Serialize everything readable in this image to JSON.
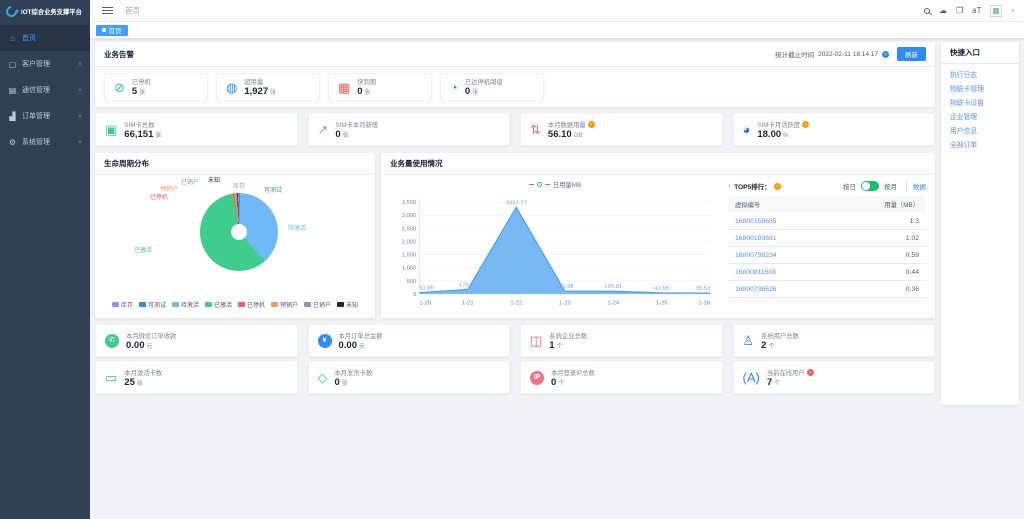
{
  "app": {
    "logo_title": "IOT综合业务支撑平台"
  },
  "sidebar": {
    "items": [
      {
        "label": "首页",
        "icon": "home",
        "glyph": "⌂",
        "active": true,
        "has_children": false
      },
      {
        "label": "客户管理",
        "icon": "customer",
        "glyph": "▢",
        "active": false,
        "has_children": true
      },
      {
        "label": "通信管理",
        "icon": "communication",
        "glyph": "▤",
        "active": false,
        "has_children": true
      },
      {
        "label": "订单管理",
        "icon": "orders",
        "glyph": "▟",
        "active": false,
        "has_children": true
      },
      {
        "label": "系统管理",
        "icon": "system",
        "glyph": "⚙",
        "active": false,
        "has_children": true
      }
    ]
  },
  "topbar": {
    "breadcrumb": "首页",
    "icon_glyphs": {
      "cloud_download": "☁",
      "fullscreen": "❐",
      "font_size": "aT",
      "caret": "▾"
    }
  },
  "tabbar": {
    "active_tab": "首页"
  },
  "alert_section": {
    "title": "业务告警",
    "stats_deadline_label": "统计截止时间",
    "stats_deadline": "2022-02-11 18:14:17",
    "deadline_help_color": "#2d8cf0",
    "refresh_label": "刷新"
  },
  "stat_rows": {
    "row1": [
      {
        "label": "已停机",
        "value": "5",
        "unit": "张",
        "glyph": "⊘",
        "color": "#2bbfc4",
        "boxed": false,
        "help": null
      },
      {
        "label": "超用量",
        "value": "1,927",
        "unit": "张",
        "glyph": "◍",
        "color": "#2d8cf0",
        "boxed": false,
        "help": null
      },
      {
        "label": "快到期",
        "value": "0",
        "unit": "张",
        "glyph": "▦",
        "color": "#f25e62",
        "boxed": false,
        "help": null
      },
      {
        "label": "已达停机阈值",
        "value": "0",
        "unit": "张",
        "glyph": "◔",
        "color": "#2d8cf0",
        "boxed": false,
        "help": null
      }
    ],
    "row2": [
      {
        "label": "SIM卡总数",
        "value": "66,151",
        "unit": "张",
        "glyph": "▣",
        "color": "#3fcd8e",
        "boxed": false,
        "help": null
      },
      {
        "label": "SIM卡本月新增",
        "value": "0",
        "unit": "张",
        "glyph": "↗",
        "color": "#8fa4c0",
        "boxed": false,
        "help": null
      },
      {
        "label": "本月数据用量",
        "value": "56.10",
        "unit": "GB",
        "glyph": "⇅",
        "color": "#f2708a",
        "boxed": false,
        "help": "#ff9900"
      },
      {
        "label": "SIM卡月活跃度",
        "value": "18.00",
        "unit": "%",
        "glyph": "◕",
        "color": "#1f6ff2",
        "boxed": false,
        "help": "#ff9900"
      }
    ],
    "row3": [
      {
        "label": "本月微信订单收款",
        "value": "0.00",
        "unit": "元",
        "glyph": "✆",
        "color": "#3fcd8e",
        "boxed": true,
        "help": null
      },
      {
        "label": "本月订单总金额",
        "value": "0.00",
        "unit": "元",
        "glyph": "¥",
        "color": "#2d8cf0",
        "boxed": true,
        "help": null
      },
      {
        "label": "系统企业总数",
        "value": "1",
        "unit": "个",
        "glyph": "◫",
        "color": "#f25e62",
        "boxed": false,
        "help": null
      },
      {
        "label": "系统用户总数",
        "value": "2",
        "unit": "个",
        "glyph": "♙",
        "color": "#2d8cf0",
        "boxed": false,
        "help": null
      }
    ],
    "row4": [
      {
        "label": "本月激活卡数",
        "value": "25",
        "unit": "张",
        "glyph": "▭",
        "color": "#2bbfc4",
        "boxed": false,
        "help": null
      },
      {
        "label": "本月发货卡数",
        "value": "0",
        "unit": "张",
        "glyph": "◇",
        "color": "#2bbfc4",
        "boxed": false,
        "help": null
      },
      {
        "label": "本月登录IP总数",
        "value": "0",
        "unit": "个",
        "glyph": "IP",
        "color": "#f2708a",
        "boxed": true,
        "help": null
      },
      {
        "label": "当前在线用户",
        "value": "7",
        "unit": "个",
        "glyph": "(A)",
        "color": "#2d8cf0",
        "boxed": false,
        "help": "#f25e62"
      }
    ]
  },
  "lifecycle": {
    "title": "生命周期分布",
    "legend": [
      {
        "label": "库存",
        "color": "#a987f2"
      },
      {
        "label": "可测试",
        "color": "#2d8cf0"
      },
      {
        "label": "待激活",
        "color": "#6fb9f7"
      },
      {
        "label": "已激活",
        "color": "#3fcd8e"
      },
      {
        "label": "已停机",
        "color": "#f25e62"
      },
      {
        "label": "预销户",
        "color": "#f59a63"
      },
      {
        "label": "已销户",
        "color": "#8a9db5"
      },
      {
        "label": "未知",
        "color": "#23262e"
      }
    ]
  },
  "usage": {
    "title": "业务量使用情况",
    "series_legend": "日用量MB",
    "top5_arrow": "↑",
    "top5_title": "TOP5排行：",
    "top5_help_color": "#ff9900",
    "toggle_left": "按日",
    "toggle_right": "按月",
    "side_link": "数据",
    "table": {
      "col1": "虚拟编号",
      "col2": "用量（MB）",
      "rows": [
        {
          "number": "16800158685",
          "usage": "1.3"
        },
        {
          "number": "16800193681",
          "usage": "1.02"
        },
        {
          "number": "16800738234",
          "usage": "0.59"
        },
        {
          "number": "16800811508",
          "usage": "0.44"
        },
        {
          "number": "16800736526",
          "usage": "0.36"
        }
      ]
    }
  },
  "quick_panel": {
    "title": "快捷入口",
    "links": [
      "执行日志",
      "物联卡管理",
      "物联卡设置",
      "企业管理",
      "用户信息",
      "全部订单"
    ]
  },
  "chart_data": [
    {
      "type": "area",
      "title": "业务量使用情况",
      "x": [
        "1-20",
        "1-21",
        "1-22",
        "1-23",
        "1-24",
        "1-25",
        "1-26"
      ],
      "series": [
        {
          "name": "日用量MB",
          "values": [
            51.89,
            176.06,
            3307.27,
            113.38,
            105.81,
            41.55,
            35.53
          ]
        }
      ],
      "value_labels": [
        "51.89",
        "176.06",
        "3307.27",
        "113.38",
        "105.81",
        "41.55",
        "35.53"
      ],
      "ylim": [
        0,
        3500
      ],
      "yticks": [
        0,
        500,
        1000,
        1500,
        2000,
        2500,
        3000,
        3500
      ],
      "ytick_labels": [
        "0",
        "500",
        "1,000",
        "1,500",
        "2,000",
        "2,500",
        "3,000",
        "3,500"
      ],
      "xlabel": "",
      "ylabel": "",
      "grid": true,
      "legend_position": "top",
      "area_color": "#6cb2f3",
      "line_color": "#3d97f0",
      "label_color": "#7aa6e8",
      "xtick_color": "#5b87d8",
      "ytick_color": "#76879b"
    },
    {
      "type": "pie",
      "title": "生命周期分布",
      "slices": [
        {
          "label": "可测试",
          "pct": 0.4,
          "color": "#2d8cf0"
        },
        {
          "label": "待激活",
          "pct": 38,
          "color": "#6fb9f7"
        },
        {
          "label": "已激活",
          "pct": 59,
          "color": "#3fcd8e"
        },
        {
          "label": "已停机",
          "pct": 0.7,
          "color": "#f25e62"
        },
        {
          "label": "预销户",
          "pct": 0.6,
          "color": "#f59a63"
        },
        {
          "label": "已销户",
          "pct": 0.5,
          "color": "#8a9db5"
        },
        {
          "label": "未知",
          "pct": 0.4,
          "color": "#23262e"
        },
        {
          "label": "库存",
          "pct": 0.4,
          "color": "#a987f2"
        }
      ]
    }
  ]
}
